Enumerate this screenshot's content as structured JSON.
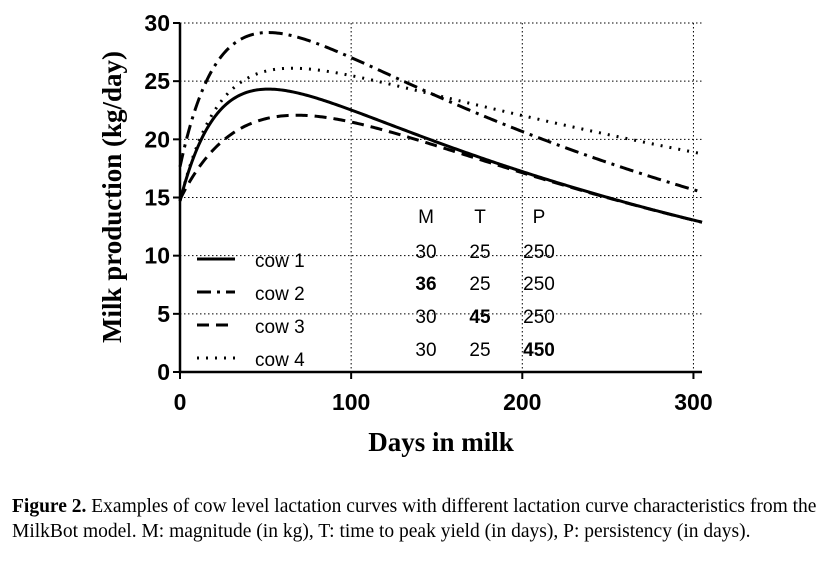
{
  "chart_data": {
    "type": "line",
    "xlabel": "Days in milk",
    "ylabel": "Milk production (kg/day)",
    "xlim": [
      0,
      305
    ],
    "ylim": [
      0,
      30
    ],
    "xticks": [
      0,
      100,
      200,
      300
    ],
    "yticks": [
      0,
      5,
      10,
      15,
      20,
      25,
      30
    ],
    "grid": true,
    "legend_position": "bottom-left",
    "model": "MilkBot",
    "series": [
      {
        "name": "cow 1",
        "style": "solid",
        "M": 30,
        "T": 25,
        "P": 250,
        "offset": 0.5
      },
      {
        "name": "cow 2",
        "style": "dashdot",
        "M": 36,
        "T": 25,
        "P": 250,
        "offset": 0.5
      },
      {
        "name": "cow 3",
        "style": "dashed",
        "M": 30,
        "T": 45,
        "P": 250,
        "offset": 0.5
      },
      {
        "name": "cow 4",
        "style": "dotted",
        "M": 30,
        "T": 25,
        "P": 450,
        "offset": 0.5
      }
    ],
    "parameter_table": {
      "headers": [
        "M",
        "T",
        "P"
      ],
      "rows": [
        {
          "values": [
            "30",
            "25",
            "250"
          ],
          "bold": [
            false,
            false,
            false
          ]
        },
        {
          "values": [
            "36",
            "25",
            "250"
          ],
          "bold": [
            true,
            false,
            false
          ]
        },
        {
          "values": [
            "30",
            "45",
            "250"
          ],
          "bold": [
            false,
            true,
            false
          ]
        },
        {
          "values": [
            "30",
            "25",
            "450"
          ],
          "bold": [
            false,
            false,
            true
          ]
        }
      ]
    }
  },
  "caption": {
    "label": "Figure 2.",
    "text": " Examples of cow level lactation curves with different lactation curve characteristics from the MilkBot model. M: magnitude (in kg), T: time to peak yield (in days), P: persistency (in days)."
  }
}
